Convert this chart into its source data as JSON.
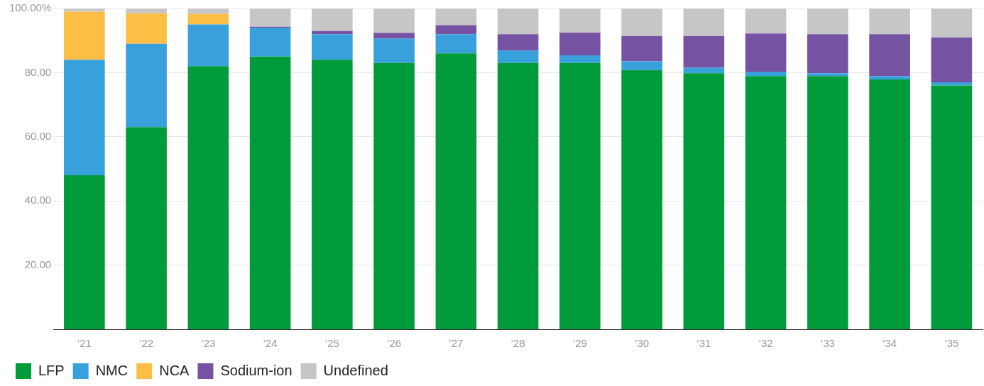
{
  "chart_data": {
    "type": "bar",
    "stacked": true,
    "categories": [
      "’21",
      "’22",
      "’23",
      "’24",
      "’25",
      "’26",
      "’27",
      "’28",
      "’29",
      "’30",
      "’31",
      "’32",
      "’33",
      "’34",
      "’35"
    ],
    "series": [
      {
        "name": "LFP",
        "color": "#009b3a",
        "values": [
          48,
          63,
          82,
          85,
          84,
          83,
          86,
          83,
          83,
          80.8,
          79.8,
          78.9,
          78.9,
          77.9,
          76
        ]
      },
      {
        "name": "NMC",
        "color": "#38a1db",
        "values": [
          36,
          26,
          13,
          9,
          8,
          7.6,
          6,
          3.9,
          2.4,
          2.7,
          1.7,
          1.4,
          0.9,
          1,
          1
        ]
      },
      {
        "name": "NCA",
        "color": "#fbbf45",
        "values": [
          15,
          9.5,
          3.3,
          0,
          0,
          0,
          0,
          0,
          0,
          0,
          0,
          0,
          0,
          0,
          0
        ]
      },
      {
        "name": "Sodium-ion",
        "color": "#7652a2",
        "values": [
          0,
          0,
          0,
          0.3,
          1,
          1.8,
          2.8,
          5.1,
          7.1,
          7.9,
          9.9,
          11.9,
          12.2,
          13.1,
          14
        ]
      },
      {
        "name": "Undefined",
        "color": "#c6c6c6",
        "values": [
          1,
          1.5,
          1.7,
          5.7,
          7,
          7.6,
          5.2,
          8,
          7.5,
          8.6,
          8.6,
          7.8,
          8,
          8,
          9
        ]
      }
    ],
    "ylim": [
      0,
      100
    ],
    "yticks": [
      {
        "value": 20,
        "label": "20.00"
      },
      {
        "value": 40,
        "label": "40.00"
      },
      {
        "value": 60,
        "label": "60.00"
      },
      {
        "value": 80,
        "label": "80.00"
      },
      {
        "value": 100,
        "label": "100.00%"
      }
    ],
    "grid": "y",
    "legend": "bottom left"
  }
}
